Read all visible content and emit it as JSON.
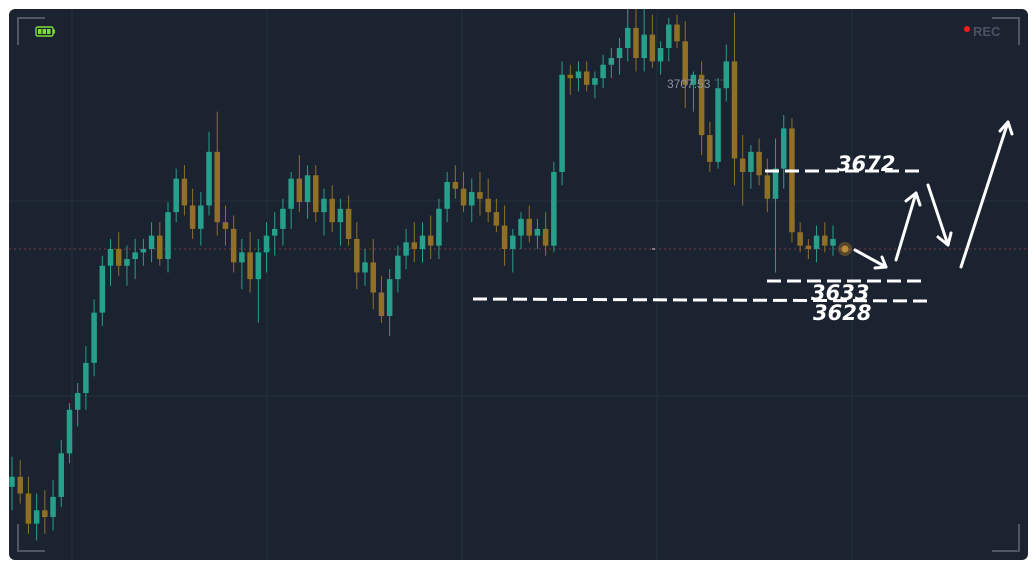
{
  "recording": {
    "label": "REC",
    "dot_color": "#ff1a1a",
    "battery_color": "#7ddc3a"
  },
  "colors": {
    "up": "#26a08a",
    "down": "#8f7026",
    "background": "#1b2230",
    "grid": "#24323d",
    "annotation": "#ffffff"
  },
  "chart_data": {
    "type": "candlestick",
    "title": "",
    "xlabel": "",
    "ylabel": "",
    "ylim": [
      3520,
      3730
    ],
    "grid": true,
    "annotations": {
      "high_label": "3707.53",
      "levels": [
        {
          "label": "3672",
          "value": 3672
        },
        {
          "label": "3633",
          "value": 3633
        },
        {
          "label": "3628",
          "value": 3628
        }
      ],
      "projection_arrows": 4
    },
    "candles": [
      [
        3566,
        3575,
        3559,
        3569
      ],
      [
        3569,
        3574,
        3561,
        3564
      ],
      [
        3564,
        3569,
        3552,
        3555
      ],
      [
        3555,
        3564,
        3550,
        3559
      ],
      [
        3559,
        3565,
        3552,
        3557
      ],
      [
        3557,
        3568,
        3553,
        3563
      ],
      [
        3563,
        3580,
        3560,
        3576
      ],
      [
        3576,
        3591,
        3573,
        3589
      ],
      [
        3589,
        3597,
        3584,
        3594
      ],
      [
        3594,
        3608,
        3589,
        3603
      ],
      [
        3603,
        3622,
        3599,
        3618
      ],
      [
        3618,
        3635,
        3614,
        3632
      ],
      [
        3632,
        3640,
        3626,
        3637
      ],
      [
        3637,
        3642,
        3629,
        3632
      ],
      [
        3632,
        3638,
        3626,
        3634
      ],
      [
        3634,
        3640,
        3628,
        3636
      ],
      [
        3636,
        3640,
        3632,
        3637
      ],
      [
        3637,
        3645,
        3633,
        3641
      ],
      [
        3641,
        3645,
        3632,
        3634
      ],
      [
        3634,
        3651,
        3630,
        3648
      ],
      [
        3648,
        3661,
        3645,
        3658
      ],
      [
        3658,
        3662,
        3647,
        3650
      ],
      [
        3650,
        3655,
        3640,
        3643
      ],
      [
        3643,
        3654,
        3638,
        3650
      ],
      [
        3650,
        3672,
        3647,
        3666
      ],
      [
        3666,
        3678,
        3641,
        3645
      ],
      [
        3645,
        3650,
        3638,
        3643
      ],
      [
        3643,
        3647,
        3630,
        3633
      ],
      [
        3633,
        3640,
        3625,
        3636
      ],
      [
        3636,
        3642,
        3624,
        3628
      ],
      [
        3628,
        3640,
        3615,
        3636
      ],
      [
        3636,
        3645,
        3630,
        3641
      ],
      [
        3641,
        3648,
        3635,
        3643
      ],
      [
        3643,
        3652,
        3638,
        3649
      ],
      [
        3649,
        3660,
        3643,
        3658
      ],
      [
        3658,
        3665,
        3648,
        3651
      ],
      [
        3651,
        3662,
        3646,
        3659
      ],
      [
        3659,
        3662,
        3645,
        3648
      ],
      [
        3648,
        3655,
        3641,
        3652
      ],
      [
        3652,
        3656,
        3642,
        3645
      ],
      [
        3645,
        3652,
        3638,
        3649
      ],
      [
        3649,
        3653,
        3638,
        3640
      ],
      [
        3640,
        3645,
        3625,
        3630
      ],
      [
        3630,
        3637,
        3626,
        3633
      ],
      [
        3633,
        3640,
        3619,
        3624
      ],
      [
        3624,
        3629,
        3615,
        3617
      ],
      [
        3617,
        3631,
        3611,
        3628
      ],
      [
        3628,
        3638,
        3624,
        3635
      ],
      [
        3635,
        3643,
        3631,
        3639
      ],
      [
        3639,
        3645,
        3633,
        3637
      ],
      [
        3637,
        3645,
        3633,
        3641
      ],
      [
        3641,
        3647,
        3634,
        3638
      ],
      [
        3638,
        3652,
        3634,
        3649
      ],
      [
        3649,
        3660,
        3645,
        3657
      ],
      [
        3657,
        3662,
        3652,
        3655
      ],
      [
        3655,
        3660,
        3648,
        3650
      ],
      [
        3650,
        3658,
        3645,
        3654
      ],
      [
        3654,
        3660,
        3647,
        3652
      ],
      [
        3652,
        3658,
        3645,
        3648
      ],
      [
        3648,
        3652,
        3642,
        3644
      ],
      [
        3644,
        3650,
        3632,
        3637
      ],
      [
        3637,
        3643,
        3630,
        3641
      ],
      [
        3641,
        3648,
        3637,
        3646
      ],
      [
        3646,
        3650,
        3639,
        3641
      ],
      [
        3641,
        3646,
        3637,
        3643
      ],
      [
        3643,
        3648,
        3635,
        3638
      ],
      [
        3638,
        3663,
        3636,
        3660
      ],
      [
        3660,
        3693,
        3656,
        3689
      ],
      [
        3689,
        3692,
        3683,
        3688
      ],
      [
        3688,
        3693,
        3684,
        3690
      ],
      [
        3690,
        3693,
        3684,
        3686
      ],
      [
        3686,
        3690,
        3682,
        3688
      ],
      [
        3688,
        3695,
        3685,
        3692
      ],
      [
        3692,
        3697,
        3688,
        3694
      ],
      [
        3694,
        3700,
        3689,
        3697
      ],
      [
        3697,
        3709,
        3693,
        3703
      ],
      [
        3703,
        3711,
        3690,
        3694
      ],
      [
        3694,
        3709,
        3690,
        3701
      ],
      [
        3701,
        3707,
        3691,
        3693
      ],
      [
        3693,
        3699,
        3689,
        3697
      ],
      [
        3697,
        3706,
        3693,
        3704
      ],
      [
        3704,
        3707,
        3697,
        3699
      ],
      [
        3699,
        3705,
        3679,
        3686
      ],
      [
        3686,
        3690,
        3678,
        3689
      ],
      [
        3689,
        3693,
        3665,
        3671
      ],
      [
        3671,
        3675,
        3660,
        3663
      ],
      [
        3663,
        3688,
        3661,
        3685
      ],
      [
        3685,
        3698,
        3681,
        3693
      ],
      [
        3693,
        3707.53,
        3656,
        3664
      ],
      [
        3664,
        3671,
        3650,
        3660
      ],
      [
        3660,
        3668,
        3655,
        3666
      ],
      [
        3666,
        3670,
        3656,
        3659
      ],
      [
        3659,
        3664,
        3648,
        3652
      ],
      [
        3652,
        3670,
        3630,
        3661
      ],
      [
        3661,
        3677,
        3655,
        3673
      ],
      [
        3673,
        3676,
        3639,
        3642
      ],
      [
        3642,
        3645,
        3636,
        3638
      ],
      [
        3638,
        3640,
        3634,
        3637
      ],
      [
        3637,
        3644,
        3633,
        3641
      ],
      [
        3641,
        3645,
        3636,
        3638
      ],
      [
        3638,
        3644,
        3635,
        3640
      ]
    ]
  }
}
